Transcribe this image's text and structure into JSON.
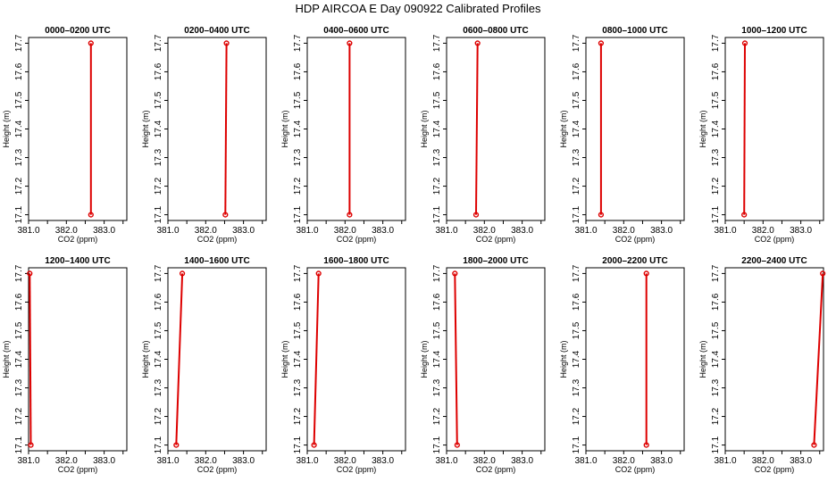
{
  "title": "HDP AIRCOA E  Day 090922  Calibrated Profiles",
  "chart_data": {
    "type": "line",
    "xlabel": "CO2 (ppm)",
    "ylabel": "Height (m)",
    "xlim": [
      381.0,
      383.6
    ],
    "ylim": [
      17.08,
      17.72
    ],
    "xticks": [
      "381.0",
      "382.0",
      "383.0"
    ],
    "yticks": [
      "17.1",
      "17.2",
      "17.3",
      "17.4",
      "17.5",
      "17.6",
      "17.7"
    ],
    "line_color": "#dd0000",
    "panels": [
      {
        "title": "0000–0200 UTC",
        "x": [
          382.65,
          382.65
        ],
        "y": [
          17.1,
          17.7
        ]
      },
      {
        "title": "0200–0400 UTC",
        "x": [
          382.52,
          382.55
        ],
        "y": [
          17.1,
          17.7
        ]
      },
      {
        "title": "0400–0600 UTC",
        "x": [
          382.12,
          382.12
        ],
        "y": [
          17.1,
          17.7
        ]
      },
      {
        "title": "0600–0800 UTC",
        "x": [
          381.78,
          381.82
        ],
        "y": [
          17.1,
          17.7
        ]
      },
      {
        "title": "0800–1000 UTC",
        "x": [
          381.4,
          381.4
        ],
        "y": [
          17.1,
          17.7
        ]
      },
      {
        "title": "1000–1200 UTC",
        "x": [
          381.5,
          381.52
        ],
        "y": [
          17.1,
          17.7
        ]
      },
      {
        "title": "1200–1400 UTC",
        "x": [
          381.06,
          381.03
        ],
        "y": [
          17.1,
          17.7
        ]
      },
      {
        "title": "1400–1600 UTC",
        "x": [
          381.22,
          381.38
        ],
        "y": [
          17.1,
          17.7
        ]
      },
      {
        "title": "1600–1800 UTC",
        "x": [
          381.18,
          381.3
        ],
        "y": [
          17.1,
          17.7
        ]
      },
      {
        "title": "1800–2000 UTC",
        "x": [
          381.28,
          381.22
        ],
        "y": [
          17.1,
          17.7
        ]
      },
      {
        "title": "2000–2200 UTC",
        "x": [
          382.6,
          382.6
        ],
        "y": [
          17.1,
          17.7
        ]
      },
      {
        "title": "2200–2400 UTC",
        "x": [
          383.35,
          383.58
        ],
        "y": [
          17.1,
          17.7
        ]
      }
    ]
  }
}
